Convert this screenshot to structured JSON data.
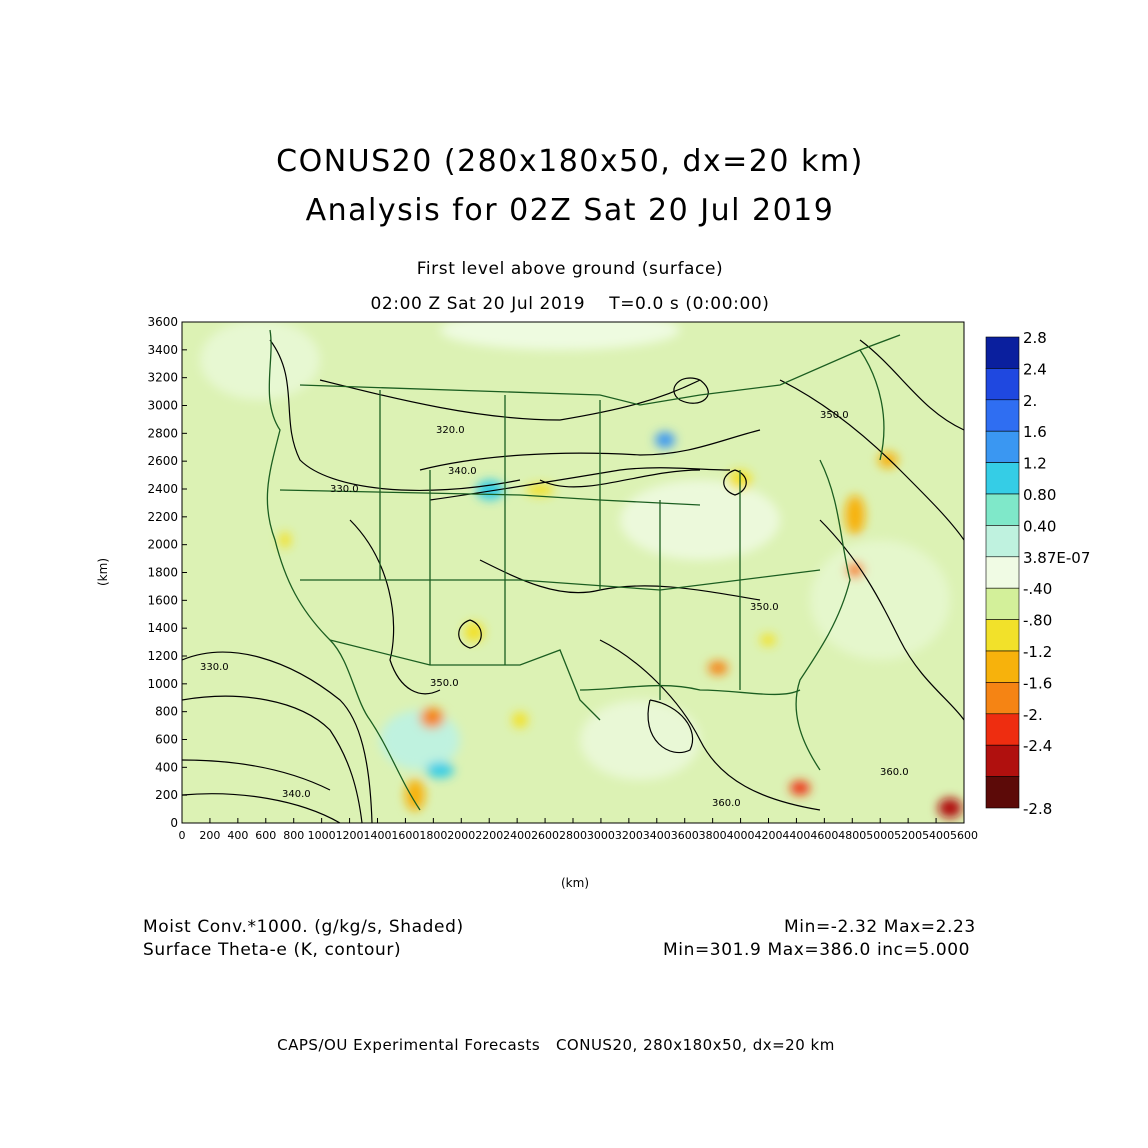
{
  "header": {
    "title_line1": "CONUS20 (280x180x50, dx=20 km)",
    "title_line2": "Analysis for 02Z Sat 20 Jul 2019",
    "level": "First level above ground (surface)",
    "valid_time": "02:00 Z Sat 20 Jul 2019    T=0.0 s (0:00:00)"
  },
  "axes": {
    "x_label": "(km)",
    "y_label": "(km)",
    "x_ticks": [
      "0",
      "200",
      "400",
      "600",
      "800",
      "1000",
      "1200",
      "1400",
      "1600",
      "1800",
      "2000",
      "2200",
      "2400",
      "2600",
      "2800",
      "3000",
      "3200",
      "3400",
      "3600",
      "3800",
      "4000",
      "4200",
      "4400",
      "4600",
      "4800",
      "5000",
      "5200",
      "5400",
      "5600"
    ],
    "y_ticks": [
      "0",
      "200",
      "400",
      "600",
      "800",
      "1000",
      "1200",
      "1400",
      "1600",
      "1800",
      "2000",
      "2200",
      "2400",
      "2600",
      "2800",
      "3000",
      "3200",
      "3400",
      "3600"
    ]
  },
  "colorbar": {
    "labels": [
      "2.8",
      "2.4",
      "2.",
      "1.6",
      "1.2",
      "0.80",
      "0.40",
      "3.87E-07",
      "-.40",
      "-.80",
      "-1.2",
      "-1.6",
      "-2.",
      "-2.4",
      "-2.8"
    ],
    "colors": [
      "#0a1f9e",
      "#1f48e0",
      "#2f6ef2",
      "#3a97f2",
      "#35cde6",
      "#7fe8c9",
      "#bff2df",
      "#f0fbe4",
      "#d3f09a",
      "#f2e12a",
      "#f7b20c",
      "#f58414",
      "#ee2d10",
      "#b0100e",
      "#5c0a08"
    ]
  },
  "contour_labels": [
    "320.0",
    "330.0",
    "340.0",
    "350.0",
    "360.0"
  ],
  "legend": {
    "field1_name": "Moist Conv.*1000. (g/kg/s, Shaded)",
    "field1_range": "Min=-2.32 Max=2.23",
    "field2_name": "Surface Theta-e (K, contour)",
    "field2_range": "Min=301.9 Max=386.0 inc=5.000"
  },
  "credit": "CAPS/OU Experimental Forecasts   CONUS20, 280x180x50, dx=20 km"
}
